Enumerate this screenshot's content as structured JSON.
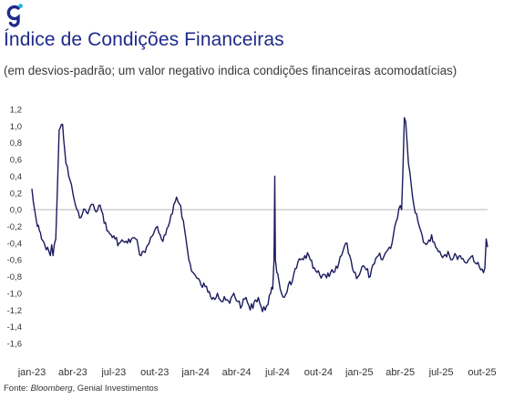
{
  "brand": {
    "logo_icon": "genial-g-logo-icon",
    "color": "#1e2a8a",
    "accent": "#22b8e0"
  },
  "header": {
    "title": "Índice de Condições Financeiras",
    "subtitle": "(em desvios-padrão; um valor negativo indica condições financeiras acomodatícias)"
  },
  "source": {
    "prefix": "Fonte:",
    "italic": "Bloomberg",
    "rest": ", Genial Investimentos"
  },
  "chart_data": {
    "type": "line",
    "title": "Índice de Condições Financeiras",
    "xlabel": "",
    "ylabel": "",
    "ylim": [
      -1.6,
      1.2
    ],
    "yticks": [
      "1,2",
      "1,0",
      "0,8",
      "0,6",
      "0,4",
      "0,2",
      "0,0",
      "-0,2",
      "-0,4",
      "-0,6",
      "-0,8",
      "-1,0",
      "-1,2",
      "-1,4",
      "-1,6"
    ],
    "ytick_values": [
      1.2,
      1.0,
      0.8,
      0.6,
      0.4,
      0.2,
      0.0,
      -0.2,
      -0.4,
      -0.6,
      -0.8,
      -1.0,
      -1.2,
      -1.4,
      -1.6
    ],
    "xticks": [
      "jan-23",
      "abr-23",
      "jul-23",
      "out-23",
      "jan-24",
      "abr-24",
      "jul-24",
      "out-24",
      "jan-25",
      "abr-25",
      "jul-25",
      "out-25"
    ],
    "zero_line": true,
    "grid": false,
    "line_color": "#1b1b5e",
    "series": [
      {
        "x": [
          0,
          0.1,
          0.25,
          0.4,
          0.55,
          0.7,
          0.9,
          1.05,
          1.15,
          1.25,
          1.35,
          1.45,
          1.55,
          1.75,
          2.0,
          2.25,
          2.5,
          2.7,
          2.9,
          3.0,
          3.1,
          3.2,
          3.3,
          3.5,
          3.7,
          3.9,
          4.1,
          4.3,
          4.6,
          4.9,
          5.2,
          5.5,
          5.8,
          6.1,
          6.4,
          6.7,
          7.0,
          7.3,
          7.6,
          7.8,
          8.0,
          8.2,
          8.4,
          8.6,
          8.8,
          9.0,
          9.2,
          9.4,
          9.6,
          9.8,
          10.0,
          10.3,
          10.6,
          10.9,
          11.2,
          11.5,
          11.8,
          12.1,
          12.4,
          12.7,
          13.0,
          13.3,
          13.6,
          13.9,
          14.2,
          14.5,
          14.8,
          15.1,
          15.4,
          15.7,
          16.0,
          16.3,
          16.6,
          16.9,
          17.2,
          17.5,
          17.65,
          17.75,
          17.8,
          17.85,
          17.95,
          18.1,
          18.3,
          18.5,
          18.8,
          19.1,
          19.4,
          19.7,
          20.0,
          20.3,
          20.6,
          20.9,
          21.2,
          21.5,
          21.8,
          22.1,
          22.4,
          22.7,
          23.0,
          23.3,
          23.6,
          23.9,
          24.2,
          24.5,
          24.8,
          25.1,
          25.4,
          25.7,
          26.0,
          26.2,
          26.4,
          26.6,
          26.8,
          27.0,
          27.1,
          27.2,
          27.3,
          27.4,
          27.5,
          27.6,
          27.7,
          27.8,
          27.9,
          28.0,
          28.2,
          28.4,
          28.6,
          28.8,
          29.0,
          29.3,
          29.6,
          29.9,
          30.2,
          30.5,
          30.8,
          31.1,
          31.4,
          31.7,
          32.0,
          32.3,
          32.6,
          32.9,
          33.2,
          33.3,
          33.4
        ],
        "y": [
          0.25,
          0.1,
          -0.05,
          -0.2,
          -0.25,
          -0.35,
          -0.4,
          -0.48,
          -0.45,
          -0.5,
          -0.55,
          -0.42,
          -0.55,
          -0.35,
          0.95,
          1.02,
          0.55,
          0.4,
          0.3,
          0.2,
          0.12,
          0.05,
          0.0,
          -0.1,
          -0.05,
          0.0,
          -0.05,
          0.05,
          0.0,
          0.05,
          -0.05,
          -0.25,
          -0.3,
          -0.35,
          -0.4,
          -0.38,
          -0.4,
          -0.35,
          -0.35,
          -0.45,
          -0.55,
          -0.5,
          -0.45,
          -0.4,
          -0.32,
          -0.25,
          -0.2,
          -0.3,
          -0.38,
          -0.3,
          -0.2,
          -0.05,
          0.15,
          0.05,
          -0.25,
          -0.6,
          -0.75,
          -0.82,
          -0.9,
          -0.92,
          -0.98,
          -1.05,
          -1.0,
          -1.1,
          -1.08,
          -1.12,
          -1.0,
          -1.1,
          -1.15,
          -1.05,
          -1.2,
          -1.1,
          -1.05,
          -1.22,
          -1.15,
          -1.0,
          -0.95,
          -0.6,
          0.4,
          -0.6,
          -0.75,
          -0.85,
          -1.0,
          -1.05,
          -0.9,
          -0.85,
          -0.7,
          -0.6,
          -0.55,
          -0.55,
          -0.7,
          -0.75,
          -0.82,
          -0.78,
          -0.8,
          -0.75,
          -0.7,
          -0.55,
          -0.4,
          -0.55,
          -0.75,
          -0.8,
          -0.68,
          -0.72,
          -0.8,
          -0.65,
          -0.55,
          -0.6,
          -0.5,
          -0.45,
          -0.4,
          -0.2,
          -0.1,
          0.05,
          0.0,
          0.5,
          1.1,
          1.05,
          0.8,
          0.55,
          0.45,
          0.3,
          0.15,
          0.05,
          -0.05,
          -0.2,
          -0.3,
          -0.4,
          -0.4,
          -0.3,
          -0.45,
          -0.5,
          -0.55,
          -0.5,
          -0.6,
          -0.55,
          -0.55,
          -0.62,
          -0.6,
          -0.55,
          -0.65,
          -0.72,
          -0.7,
          -0.35,
          -0.45
        ]
      }
    ]
  }
}
